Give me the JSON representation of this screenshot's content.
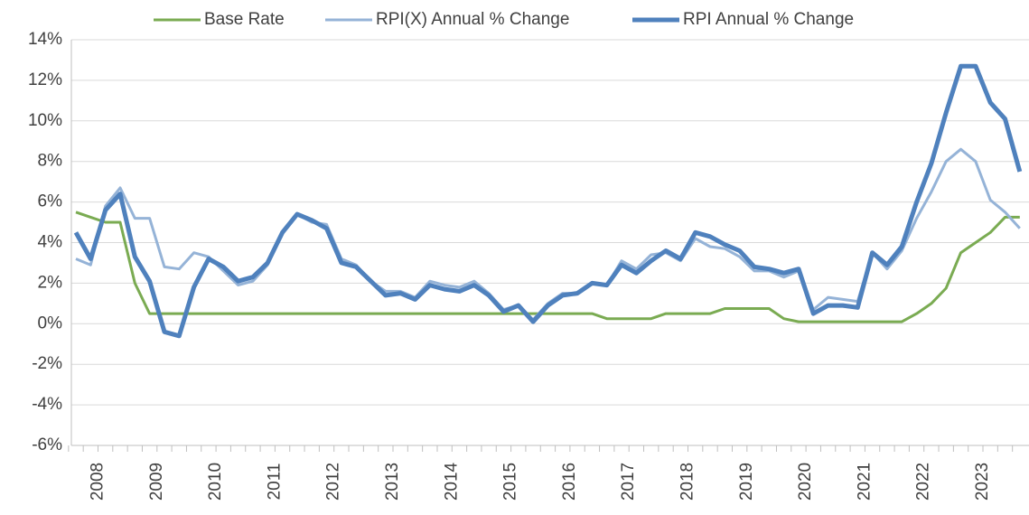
{
  "chart_data": {
    "type": "line",
    "categories": [
      "2008",
      null,
      null,
      null,
      "2009",
      null,
      null,
      null,
      "2010",
      null,
      null,
      null,
      "2011",
      null,
      null,
      null,
      "2012",
      null,
      null,
      null,
      "2013",
      null,
      null,
      null,
      "2014",
      null,
      null,
      null,
      "2015",
      null,
      null,
      null,
      "2016",
      null,
      null,
      null,
      "2017",
      null,
      null,
      null,
      "2018",
      null,
      null,
      null,
      "2019",
      null,
      null,
      null,
      "2020",
      null,
      null,
      null,
      "2021",
      null,
      null,
      null,
      "2022",
      null,
      null,
      null,
      "2023",
      null,
      null,
      null,
      null
    ],
    "series": [
      {
        "name": "Base Rate",
        "color": "#7aab52",
        "values": [
          5.5,
          5.25,
          5.0,
          5.0,
          2.0,
          0.5,
          0.5,
          0.5,
          0.5,
          0.5,
          0.5,
          0.5,
          0.5,
          0.5,
          0.5,
          0.5,
          0.5,
          0.5,
          0.5,
          0.5,
          0.5,
          0.5,
          0.5,
          0.5,
          0.5,
          0.5,
          0.5,
          0.5,
          0.5,
          0.5,
          0.5,
          0.5,
          0.5,
          0.5,
          0.5,
          0.5,
          0.25,
          0.25,
          0.25,
          0.25,
          0.5,
          0.5,
          0.5,
          0.5,
          0.75,
          0.75,
          0.75,
          0.75,
          0.25,
          0.1,
          0.1,
          0.1,
          0.1,
          0.1,
          0.1,
          0.1,
          0.1,
          0.5,
          1.0,
          1.75,
          3.5,
          4.0,
          4.5,
          5.25,
          5.25
        ]
      },
      {
        "name": "RPI(X) Annual % Change",
        "color": "#95b3d7",
        "values": [
          3.2,
          2.9,
          5.8,
          6.7,
          5.2,
          5.2,
          2.8,
          2.7,
          3.5,
          3.3,
          2.6,
          1.9,
          2.1,
          2.9,
          4.5,
          5.4,
          5.0,
          4.9,
          3.2,
          2.9,
          2.1,
          1.6,
          1.6,
          1.3,
          2.1,
          1.9,
          1.8,
          2.1,
          1.5,
          0.7,
          0.9,
          0.2,
          1.0,
          1.5,
          1.5,
          2.0,
          1.9,
          3.1,
          2.7,
          3.4,
          3.5,
          3.1,
          4.2,
          3.8,
          3.7,
          3.3,
          2.6,
          2.6,
          2.3,
          2.6,
          0.7,
          1.3,
          1.2,
          1.1,
          3.5,
          2.7,
          3.6,
          5.2,
          6.5,
          8.0,
          8.6,
          8.0,
          6.1,
          5.5,
          4.7
        ]
      },
      {
        "name": "RPI Annual % Change",
        "color": "#4f81bd",
        "values": [
          4.5,
          3.2,
          5.6,
          6.4,
          3.3,
          2.1,
          -0.4,
          -0.6,
          1.8,
          3.2,
          2.8,
          2.1,
          2.3,
          3.0,
          4.5,
          5.4,
          5.1,
          4.7,
          3.0,
          2.8,
          2.1,
          1.4,
          1.5,
          1.2,
          1.9,
          1.7,
          1.6,
          1.9,
          1.4,
          0.6,
          0.9,
          0.1,
          0.9,
          1.4,
          1.5,
          2.0,
          1.9,
          2.9,
          2.5,
          3.1,
          3.6,
          3.2,
          4.5,
          4.3,
          3.9,
          3.6,
          2.8,
          2.7,
          2.5,
          2.7,
          0.5,
          0.9,
          0.9,
          0.8,
          3.5,
          2.9,
          3.8,
          6.0,
          7.9,
          10.4,
          12.7,
          12.7,
          10.9,
          10.1,
          7.5
        ]
      }
    ],
    "ylim": [
      -6,
      14
    ],
    "yticks": [
      {
        "value": -6,
        "label": "-6%"
      },
      {
        "value": -4,
        "label": "-4%"
      },
      {
        "value": -2,
        "label": "-2%"
      },
      {
        "value": 0,
        "label": "0%"
      },
      {
        "value": 2,
        "label": "2%"
      },
      {
        "value": 4,
        "label": "4%"
      },
      {
        "value": 6,
        "label": "6%"
      },
      {
        "value": 8,
        "label": "8%"
      },
      {
        "value": 10,
        "label": "10%"
      },
      {
        "value": 12,
        "label": "12%"
      },
      {
        "value": 14,
        "label": "14%"
      }
    ],
    "grid": true,
    "legend": "top"
  }
}
